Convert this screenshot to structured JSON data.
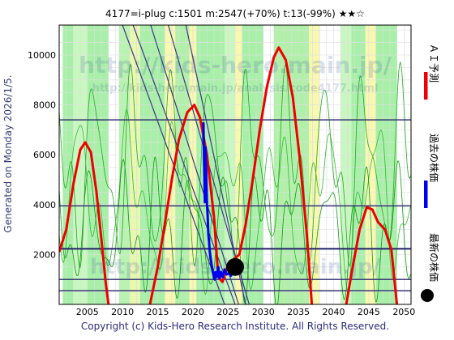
{
  "header": {
    "title": "4177=i-plug    c:1501   m:2547(+70%)  t:13(-99%)  ★★☆"
  },
  "side_label": "Generated on Monday 2026/1/5.",
  "footer": "Copyright (c) Kids-Hero Research Institute. All Rights Reserved.",
  "watermarks": {
    "main": "http://kids-hero.main.jp/",
    "sub": "http://kids-hero.main.jp/analysis/code4177.html",
    "bottom": "http://kids-hero.main.jp/"
  },
  "legend": [
    {
      "label": "ＡＩ予測",
      "color": "#ee0000"
    },
    {
      "label": "過去の株価",
      "color": "#0000ee"
    },
    {
      "label": "最新の株価",
      "color": "#000000"
    }
  ],
  "chart_data": {
    "type": "line",
    "xlim": [
      2001,
      2051
    ],
    "ylim": [
      0,
      11200
    ],
    "xticks": [
      2005,
      2010,
      2015,
      2020,
      2025,
      2030,
      2035,
      2040,
      2045,
      2050
    ],
    "yticks": [
      2000,
      4000,
      6000,
      8000,
      10000
    ],
    "horizontal_lines": [
      7400,
      3950,
      2230,
      1000,
      550
    ],
    "series": [
      {
        "name": "ＡＩ予測",
        "color": "#ee0000",
        "segments": [
          [
            [
              2001.0,
              2100
            ],
            [
              2002.0,
              3000
            ],
            [
              2003.0,
              4800
            ],
            [
              2004.0,
              6200
            ],
            [
              2004.7,
              6500
            ],
            [
              2005.5,
              6100
            ],
            [
              2006.3,
              4500
            ],
            [
              2007.0,
              2600
            ],
            [
              2007.6,
              900
            ],
            [
              2008.0,
              0
            ]
          ],
          [
            [
              2013.9,
              0
            ],
            [
              2015.0,
              1500
            ],
            [
              2016.0,
              3200
            ],
            [
              2017.0,
              5000
            ],
            [
              2018.0,
              6600
            ],
            [
              2019.2,
              7700
            ],
            [
              2020.2,
              8000
            ],
            [
              2021.0,
              7500
            ],
            [
              2022.0,
              6000
            ],
            [
              2023.0,
              3500
            ],
            [
              2023.6,
              1100
            ],
            [
              2024.2,
              900
            ],
            [
              2025.0,
              1600
            ],
            [
              2026.6,
              2000
            ],
            [
              2027.5,
              3200
            ],
            [
              2028.5,
              5000
            ],
            [
              2029.5,
              7000
            ],
            [
              2030.5,
              8700
            ],
            [
              2031.5,
              9900
            ],
            [
              2032.2,
              10300
            ],
            [
              2033.2,
              9800
            ],
            [
              2034.2,
              8300
            ],
            [
              2035.2,
              5800
            ],
            [
              2036.2,
              2800
            ],
            [
              2036.9,
              0
            ]
          ],
          [
            [
              2041.8,
              0
            ],
            [
              2042.7,
              1500
            ],
            [
              2043.7,
              3000
            ],
            [
              2044.7,
              3900
            ],
            [
              2045.5,
              3800
            ],
            [
              2046.3,
              3300
            ],
            [
              2047.3,
              3000
            ],
            [
              2048.2,
              2200
            ],
            [
              2049.0,
              0
            ]
          ]
        ]
      },
      {
        "name": "過去の株価",
        "color": "#0000ee",
        "points": [
          [
            2021.5,
            7300
          ],
          [
            2021.6,
            5600
          ],
          [
            2021.7,
            4100
          ],
          [
            2021.8,
            6300
          ],
          [
            2021.9,
            5200
          ],
          [
            2022.0,
            4000
          ],
          [
            2022.1,
            3600
          ],
          [
            2022.2,
            2800
          ],
          [
            2022.3,
            2500
          ],
          [
            2022.4,
            2100
          ],
          [
            2022.5,
            1900
          ],
          [
            2022.7,
            1500
          ],
          [
            2022.9,
            1200
          ],
          [
            2023.1,
            1000
          ],
          [
            2023.2,
            1300
          ],
          [
            2023.4,
            1100
          ],
          [
            2023.6,
            1500
          ],
          [
            2023.8,
            1050
          ],
          [
            2024.0,
            1300
          ],
          [
            2024.2,
            1100
          ],
          [
            2024.5,
            1400
          ],
          [
            2024.8,
            1200
          ],
          [
            2025.1,
            1250
          ],
          [
            2025.4,
            1150
          ],
          [
            2025.7,
            1300
          ]
        ]
      },
      {
        "name": "最新の株価",
        "color": "#000000",
        "points": [
          [
            2026.0,
            1501
          ]
        ]
      }
    ]
  }
}
